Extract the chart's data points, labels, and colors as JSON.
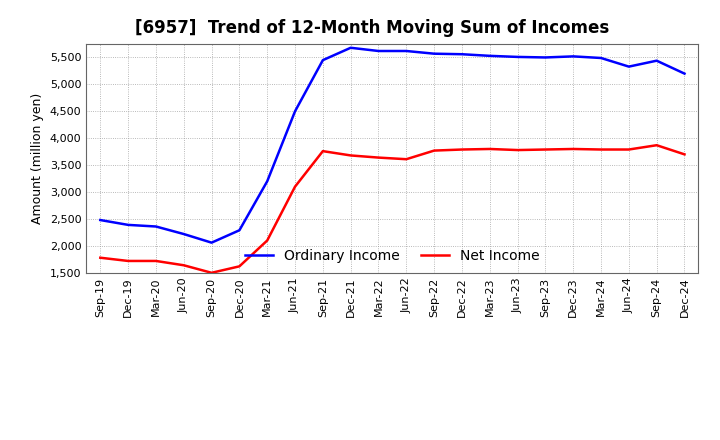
{
  "title": "[6957]  Trend of 12-Month Moving Sum of Incomes",
  "ylabel": "Amount (million yen)",
  "labels": [
    "Sep-19",
    "Dec-19",
    "Mar-20",
    "Jun-20",
    "Sep-20",
    "Dec-20",
    "Mar-21",
    "Jun-21",
    "Sep-21",
    "Dec-21",
    "Mar-22",
    "Jun-22",
    "Sep-22",
    "Dec-22",
    "Mar-23",
    "Jun-23",
    "Sep-23",
    "Dec-23",
    "Mar-24",
    "Jun-24",
    "Sep-24",
    "Dec-24"
  ],
  "ordinary_income": [
    2480,
    2390,
    2360,
    2220,
    2060,
    2290,
    3200,
    4500,
    5450,
    5680,
    5620,
    5620,
    5570,
    5560,
    5530,
    5510,
    5500,
    5520,
    5490,
    5330,
    5440,
    5200
  ],
  "net_income": [
    1780,
    1720,
    1720,
    1640,
    1500,
    1620,
    2100,
    3100,
    3760,
    3680,
    3640,
    3610,
    3770,
    3790,
    3800,
    3780,
    3790,
    3800,
    3790,
    3790,
    3870,
    3700
  ],
  "ordinary_color": "#0000ff",
  "net_color": "#ff0000",
  "ylim": [
    1500,
    5750
  ],
  "yticks": [
    1500,
    2000,
    2500,
    3000,
    3500,
    4000,
    4500,
    5000,
    5500
  ],
  "background_color": "#ffffff",
  "grid_color": "#999999",
  "title_fontsize": 12,
  "legend_fontsize": 10,
  "axis_fontsize": 8,
  "linewidth": 1.8
}
